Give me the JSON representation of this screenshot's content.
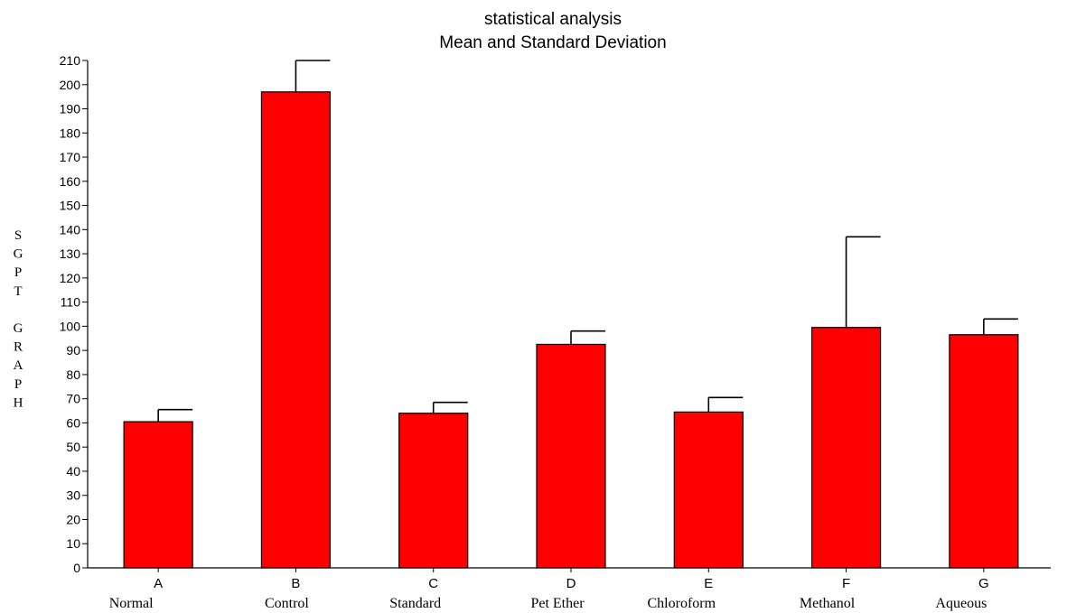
{
  "chart_data": {
    "type": "bar",
    "title": "statistical analysis",
    "subtitle": "Mean and Standard Deviation",
    "ylabel": "SGPT GRAPH",
    "ylabel_letters": [
      "S",
      "G",
      "P",
      "T",
      "",
      "G",
      "R",
      "A",
      "P",
      "H"
    ],
    "ylim": [
      0,
      210
    ],
    "yticks": [
      0,
      10,
      20,
      30,
      40,
      50,
      60,
      70,
      80,
      90,
      100,
      110,
      120,
      130,
      140,
      150,
      160,
      170,
      180,
      190,
      200,
      210
    ],
    "categories": [
      "A",
      "B",
      "C",
      "D",
      "E",
      "F",
      "G"
    ],
    "group_labels": [
      "Normal",
      "Control",
      "Standard",
      "Pet Ether",
      "Chloroform",
      "Methanol",
      "Aqueous"
    ],
    "values": [
      60.5,
      197,
      64,
      92.5,
      64.5,
      99.5,
      96.5
    ],
    "errors": [
      5,
      13,
      4.5,
      5.5,
      6,
      37.5,
      6.5
    ],
    "bar_color": "#ff0000",
    "grid": false
  }
}
